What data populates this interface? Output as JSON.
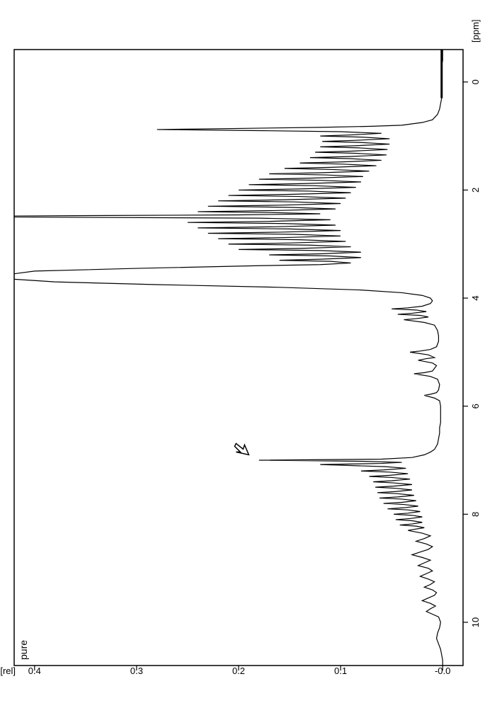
{
  "chart": {
    "type": "line",
    "title": "pure",
    "title_fontsize": 14,
    "orientation": "rotated-90ccw",
    "background_color": "#ffffff",
    "line_color": "#000000",
    "line_width": 1.2,
    "border_color": "#000000",
    "border_width": 1.5,
    "text_color": "#000000",
    "tick_fontsize": 13,
    "label_fontsize": 13,
    "x_axis": {
      "label": "[ppm]",
      "reversed": true,
      "ticks": [
        10,
        8,
        6,
        4,
        2,
        0
      ],
      "range_min": -0.6,
      "range_max": 10.8
    },
    "y_axis": {
      "label": "[rel]",
      "ticks": [
        -0.0,
        0.1,
        0.2,
        0.3,
        0.4
      ],
      "tick_labels": [
        "-0.0",
        "0.1",
        "0.2",
        "0.3",
        "0.4"
      ],
      "range_min": -0.02,
      "range_max": 0.42
    },
    "cursor_marker": {
      "ppm": 6.9,
      "intensity": 0.19,
      "symbol": "arrow-cursor"
    },
    "spectrum": [
      [
        10.8,
        0.0
      ],
      [
        10.7,
        0.0
      ],
      [
        10.6,
        0.001
      ],
      [
        10.5,
        0.002
      ],
      [
        10.4,
        0.004
      ],
      [
        10.3,
        0.006
      ],
      [
        10.2,
        0.005
      ],
      [
        10.1,
        0.003
      ],
      [
        10.0,
        0.002
      ],
      [
        9.9,
        0.004
      ],
      [
        9.85,
        0.01
      ],
      [
        9.8,
        0.016
      ],
      [
        9.75,
        0.012
      ],
      [
        9.7,
        0.007
      ],
      [
        9.65,
        0.012
      ],
      [
        9.6,
        0.02
      ],
      [
        9.55,
        0.014
      ],
      [
        9.5,
        0.008
      ],
      [
        9.45,
        0.006
      ],
      [
        9.4,
        0.01
      ],
      [
        9.35,
        0.018
      ],
      [
        9.3,
        0.012
      ],
      [
        9.25,
        0.008
      ],
      [
        9.2,
        0.014
      ],
      [
        9.15,
        0.022
      ],
      [
        9.1,
        0.016
      ],
      [
        9.05,
        0.01
      ],
      [
        9.0,
        0.014
      ],
      [
        8.95,
        0.024
      ],
      [
        8.9,
        0.018
      ],
      [
        8.85,
        0.012
      ],
      [
        8.8,
        0.02
      ],
      [
        8.75,
        0.03
      ],
      [
        8.7,
        0.022
      ],
      [
        8.65,
        0.014
      ],
      [
        8.6,
        0.01
      ],
      [
        8.55,
        0.016
      ],
      [
        8.5,
        0.026
      ],
      [
        8.45,
        0.018
      ],
      [
        8.4,
        0.012
      ],
      [
        8.35,
        0.02
      ],
      [
        8.3,
        0.034
      ],
      [
        8.28,
        0.028
      ],
      [
        8.25,
        0.018
      ],
      [
        8.22,
        0.026
      ],
      [
        8.2,
        0.042
      ],
      [
        8.18,
        0.03
      ],
      [
        8.15,
        0.02
      ],
      [
        8.12,
        0.03
      ],
      [
        8.1,
        0.046
      ],
      [
        8.08,
        0.032
      ],
      [
        8.05,
        0.02
      ],
      [
        8.02,
        0.03
      ],
      [
        8.0,
        0.048
      ],
      [
        7.98,
        0.034
      ],
      [
        7.95,
        0.022
      ],
      [
        7.92,
        0.034
      ],
      [
        7.9,
        0.054
      ],
      [
        7.88,
        0.038
      ],
      [
        7.85,
        0.024
      ],
      [
        7.82,
        0.038
      ],
      [
        7.8,
        0.058
      ],
      [
        7.78,
        0.04
      ],
      [
        7.75,
        0.026
      ],
      [
        7.72,
        0.04
      ],
      [
        7.7,
        0.062
      ],
      [
        7.68,
        0.044
      ],
      [
        7.65,
        0.028
      ],
      [
        7.62,
        0.044
      ],
      [
        7.6,
        0.064
      ],
      [
        7.58,
        0.046
      ],
      [
        7.55,
        0.03
      ],
      [
        7.52,
        0.046
      ],
      [
        7.5,
        0.066
      ],
      [
        7.48,
        0.048
      ],
      [
        7.45,
        0.03
      ],
      [
        7.42,
        0.048
      ],
      [
        7.4,
        0.068
      ],
      [
        7.38,
        0.05
      ],
      [
        7.35,
        0.032
      ],
      [
        7.32,
        0.05
      ],
      [
        7.3,
        0.072
      ],
      [
        7.28,
        0.052
      ],
      [
        7.25,
        0.034
      ],
      [
        7.22,
        0.052
      ],
      [
        7.2,
        0.08
      ],
      [
        7.18,
        0.058
      ],
      [
        7.15,
        0.036
      ],
      [
        7.12,
        0.056
      ],
      [
        7.1,
        0.088
      ],
      [
        7.08,
        0.12
      ],
      [
        7.06,
        0.06
      ],
      [
        7.04,
        0.04
      ],
      [
        7.02,
        0.08
      ],
      [
        7.0,
        0.18
      ],
      [
        6.98,
        0.06
      ],
      [
        6.95,
        0.03
      ],
      [
        6.9,
        0.018
      ],
      [
        6.85,
        0.012
      ],
      [
        6.8,
        0.008
      ],
      [
        6.7,
        0.005
      ],
      [
        6.6,
        0.004
      ],
      [
        6.5,
        0.003
      ],
      [
        6.4,
        0.003
      ],
      [
        6.3,
        0.002
      ],
      [
        6.2,
        0.002
      ],
      [
        6.1,
        0.002
      ],
      [
        6.0,
        0.002
      ],
      [
        5.9,
        0.003
      ],
      [
        5.85,
        0.008
      ],
      [
        5.8,
        0.018
      ],
      [
        5.78,
        0.012
      ],
      [
        5.75,
        0.006
      ],
      [
        5.7,
        0.004
      ],
      [
        5.6,
        0.003
      ],
      [
        5.5,
        0.005
      ],
      [
        5.45,
        0.012
      ],
      [
        5.4,
        0.028
      ],
      [
        5.38,
        0.018
      ],
      [
        5.35,
        0.01
      ],
      [
        5.3,
        0.008
      ],
      [
        5.25,
        0.006
      ],
      [
        5.2,
        0.01
      ],
      [
        5.15,
        0.024
      ],
      [
        5.12,
        0.016
      ],
      [
        5.1,
        0.008
      ],
      [
        5.05,
        0.014
      ],
      [
        5.0,
        0.032
      ],
      [
        4.98,
        0.022
      ],
      [
        4.95,
        0.012
      ],
      [
        4.9,
        0.006
      ],
      [
        4.8,
        0.004
      ],
      [
        4.7,
        0.004
      ],
      [
        4.6,
        0.005
      ],
      [
        4.5,
        0.008
      ],
      [
        4.45,
        0.018
      ],
      [
        4.4,
        0.038
      ],
      [
        4.38,
        0.026
      ],
      [
        4.35,
        0.014
      ],
      [
        4.32,
        0.022
      ],
      [
        4.3,
        0.044
      ],
      [
        4.28,
        0.03
      ],
      [
        4.25,
        0.016
      ],
      [
        4.22,
        0.026
      ],
      [
        4.2,
        0.05
      ],
      [
        4.18,
        0.034
      ],
      [
        4.15,
        0.02
      ],
      [
        4.1,
        0.012
      ],
      [
        4.05,
        0.01
      ],
      [
        4.0,
        0.012
      ],
      [
        3.95,
        0.02
      ],
      [
        3.9,
        0.04
      ],
      [
        3.85,
        0.08
      ],
      [
        3.8,
        0.16
      ],
      [
        3.75,
        0.28
      ],
      [
        3.7,
        0.38
      ],
      [
        3.65,
        0.42
      ],
      [
        3.6,
        0.42
      ],
      [
        3.55,
        0.42
      ],
      [
        3.5,
        0.4
      ],
      [
        3.45,
        0.3
      ],
      [
        3.4,
        0.18
      ],
      [
        3.38,
        0.12
      ],
      [
        3.35,
        0.09
      ],
      [
        3.32,
        0.11
      ],
      [
        3.3,
        0.16
      ],
      [
        3.28,
        0.12
      ],
      [
        3.25,
        0.08
      ],
      [
        3.22,
        0.11
      ],
      [
        3.2,
        0.17
      ],
      [
        3.18,
        0.12
      ],
      [
        3.15,
        0.08
      ],
      [
        3.12,
        0.12
      ],
      [
        3.1,
        0.2
      ],
      [
        3.08,
        0.14
      ],
      [
        3.05,
        0.09
      ],
      [
        3.02,
        0.13
      ],
      [
        3.0,
        0.21
      ],
      [
        2.98,
        0.15
      ],
      [
        2.95,
        0.095
      ],
      [
        2.92,
        0.14
      ],
      [
        2.9,
        0.22
      ],
      [
        2.88,
        0.155
      ],
      [
        2.85,
        0.1
      ],
      [
        2.82,
        0.145
      ],
      [
        2.8,
        0.23
      ],
      [
        2.78,
        0.16
      ],
      [
        2.75,
        0.1
      ],
      [
        2.72,
        0.15
      ],
      [
        2.7,
        0.24
      ],
      [
        2.68,
        0.165
      ],
      [
        2.65,
        0.105
      ],
      [
        2.62,
        0.155
      ],
      [
        2.6,
        0.25
      ],
      [
        2.58,
        0.17
      ],
      [
        2.55,
        0.11
      ],
      [
        2.52,
        0.18
      ],
      [
        2.5,
        0.42
      ],
      [
        2.48,
        0.42
      ],
      [
        2.46,
        0.2
      ],
      [
        2.44,
        0.12
      ],
      [
        2.42,
        0.16
      ],
      [
        2.4,
        0.24
      ],
      [
        2.38,
        0.165
      ],
      [
        2.35,
        0.105
      ],
      [
        2.32,
        0.15
      ],
      [
        2.3,
        0.23
      ],
      [
        2.28,
        0.16
      ],
      [
        2.25,
        0.1
      ],
      [
        2.22,
        0.145
      ],
      [
        2.2,
        0.22
      ],
      [
        2.18,
        0.155
      ],
      [
        2.15,
        0.095
      ],
      [
        2.12,
        0.14
      ],
      [
        2.1,
        0.21
      ],
      [
        2.08,
        0.15
      ],
      [
        2.05,
        0.09
      ],
      [
        2.02,
        0.13
      ],
      [
        2.0,
        0.2
      ],
      [
        1.98,
        0.14
      ],
      [
        1.95,
        0.085
      ],
      [
        1.92,
        0.125
      ],
      [
        1.9,
        0.19
      ],
      [
        1.88,
        0.135
      ],
      [
        1.85,
        0.08
      ],
      [
        1.82,
        0.12
      ],
      [
        1.8,
        0.18
      ],
      [
        1.78,
        0.13
      ],
      [
        1.75,
        0.078
      ],
      [
        1.72,
        0.115
      ],
      [
        1.7,
        0.17
      ],
      [
        1.68,
        0.12
      ],
      [
        1.65,
        0.072
      ],
      [
        1.62,
        0.108
      ],
      [
        1.6,
        0.155
      ],
      [
        1.58,
        0.11
      ],
      [
        1.55,
        0.065
      ],
      [
        1.52,
        0.098
      ],
      [
        1.5,
        0.14
      ],
      [
        1.48,
        0.1
      ],
      [
        1.45,
        0.06
      ],
      [
        1.42,
        0.09
      ],
      [
        1.4,
        0.13
      ],
      [
        1.38,
        0.092
      ],
      [
        1.35,
        0.055
      ],
      [
        1.32,
        0.085
      ],
      [
        1.3,
        0.125
      ],
      [
        1.28,
        0.09
      ],
      [
        1.25,
        0.054
      ],
      [
        1.22,
        0.082
      ],
      [
        1.2,
        0.12
      ],
      [
        1.18,
        0.086
      ],
      [
        1.15,
        0.052
      ],
      [
        1.12,
        0.08
      ],
      [
        1.1,
        0.118
      ],
      [
        1.08,
        0.085
      ],
      [
        1.05,
        0.052
      ],
      [
        1.02,
        0.08
      ],
      [
        1.0,
        0.12
      ],
      [
        0.98,
        0.09
      ],
      [
        0.95,
        0.06
      ],
      [
        0.92,
        0.1
      ],
      [
        0.9,
        0.18
      ],
      [
        0.88,
        0.28
      ],
      [
        0.86,
        0.2
      ],
      [
        0.84,
        0.12
      ],
      [
        0.82,
        0.07
      ],
      [
        0.8,
        0.04
      ],
      [
        0.75,
        0.02
      ],
      [
        0.7,
        0.01
      ],
      [
        0.6,
        0.005
      ],
      [
        0.5,
        0.003
      ],
      [
        0.4,
        0.002
      ],
      [
        0.3,
        0.001
      ],
      [
        0.2,
        0.001
      ],
      [
        0.1,
        0.001
      ],
      [
        0.0,
        0.001
      ],
      [
        -0.1,
        0.001
      ],
      [
        -0.2,
        0.001
      ],
      [
        -0.3,
        0.001
      ],
      [
        -0.4,
        0.0
      ],
      [
        -0.5,
        0.0
      ],
      [
        -0.6,
        0.0
      ]
    ]
  }
}
